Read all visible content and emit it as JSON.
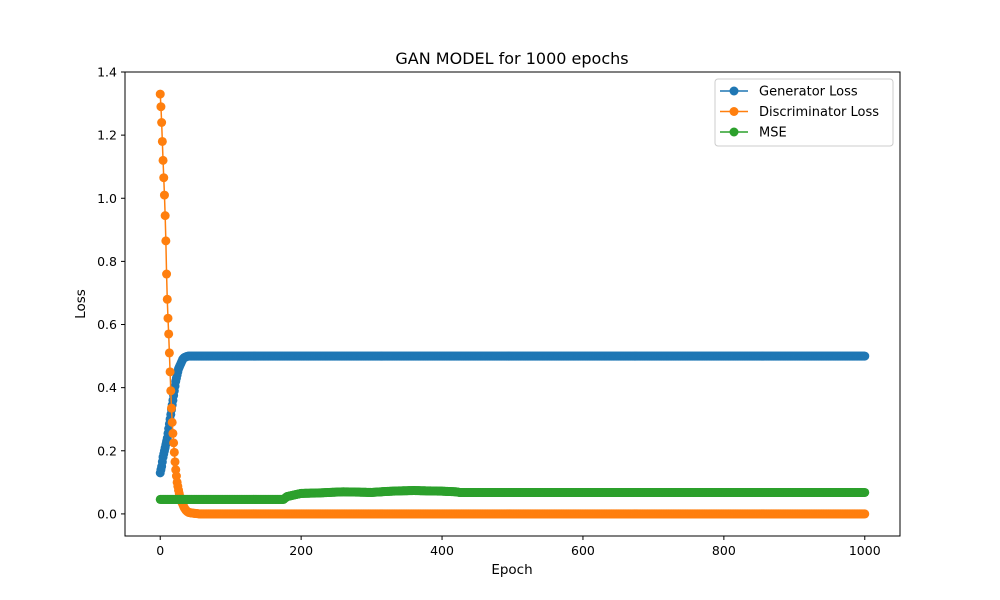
{
  "chart_data": {
    "type": "line",
    "title": "GAN MODEL  for 1000 epochs",
    "xlabel": "Epoch",
    "ylabel": "Loss",
    "xlim": [
      -50,
      1050
    ],
    "ylim": [
      -0.07,
      1.4
    ],
    "xticks": [
      0,
      200,
      400,
      600,
      800,
      1000
    ],
    "yticks": [
      0.0,
      0.2,
      0.4,
      0.6,
      0.8,
      1.0,
      1.2,
      1.4
    ],
    "xtick_labels": [
      "0",
      "200",
      "400",
      "600",
      "800",
      "1000"
    ],
    "ytick_labels": [
      "0.0",
      "0.2",
      "0.4",
      "0.6",
      "0.8",
      "1.0",
      "1.2",
      "1.4"
    ],
    "legend_position": "top-right",
    "grid": false,
    "marker": "circle",
    "series": [
      {
        "name": "Generator Loss",
        "color": "#1f77b4",
        "x": [
          0,
          2,
          4,
          6,
          8,
          10,
          12,
          14,
          16,
          18,
          20,
          22,
          24,
          26,
          28,
          30,
          32,
          34,
          36,
          38,
          40,
          44,
          48,
          52,
          56,
          60,
          70,
          80,
          100,
          150,
          200,
          300,
          400,
          500,
          600,
          700,
          800,
          900,
          1000
        ],
        "y": [
          0.13,
          0.15,
          0.18,
          0.2,
          0.22,
          0.24,
          0.27,
          0.3,
          0.33,
          0.36,
          0.39,
          0.42,
          0.44,
          0.46,
          0.47,
          0.48,
          0.49,
          0.495,
          0.497,
          0.499,
          0.5,
          0.5,
          0.5,
          0.5,
          0.5,
          0.5,
          0.5,
          0.5,
          0.5,
          0.5,
          0.5,
          0.5,
          0.5,
          0.5,
          0.5,
          0.5,
          0.5,
          0.5,
          0.5
        ]
      },
      {
        "name": "Discriminator Loss",
        "color": "#ff7f0e",
        "x": [
          0,
          1,
          2,
          3,
          4,
          5,
          6,
          7,
          8,
          9,
          10,
          11,
          12,
          13,
          14,
          15,
          16,
          17,
          18,
          19,
          20,
          21,
          22,
          23,
          24,
          26,
          28,
          30,
          32,
          34,
          36,
          38,
          40,
          44,
          48,
          52,
          56,
          60,
          70,
          80,
          100,
          150,
          200,
          300,
          400,
          500,
          600,
          700,
          800,
          900,
          1000
        ],
        "y": [
          1.33,
          1.29,
          1.24,
          1.18,
          1.12,
          1.065,
          1.01,
          0.945,
          0.865,
          0.76,
          0.68,
          0.62,
          0.57,
          0.51,
          0.45,
          0.39,
          0.335,
          0.29,
          0.255,
          0.225,
          0.195,
          0.165,
          0.14,
          0.12,
          0.1,
          0.075,
          0.055,
          0.04,
          0.03,
          0.02,
          0.013,
          0.008,
          0.005,
          0.003,
          0.002,
          0.001,
          0.0,
          0.0,
          0.0,
          0.0,
          0.0,
          0.0,
          0.0,
          0.0,
          0.0,
          0.0,
          0.0,
          0.0,
          0.0,
          0.0,
          0.0
        ]
      },
      {
        "name": "MSE",
        "color": "#2ca02c",
        "x": [
          0,
          20,
          40,
          60,
          80,
          100,
          120,
          140,
          160,
          175,
          180,
          190,
          200,
          220,
          240,
          260,
          280,
          300,
          320,
          340,
          360,
          380,
          400,
          420,
          425,
          440,
          500,
          600,
          700,
          800,
          900,
          1000
        ],
        "y": [
          0.046,
          0.046,
          0.046,
          0.046,
          0.046,
          0.046,
          0.046,
          0.046,
          0.046,
          0.046,
          0.055,
          0.06,
          0.065,
          0.066,
          0.068,
          0.07,
          0.069,
          0.068,
          0.071,
          0.073,
          0.074,
          0.073,
          0.072,
          0.07,
          0.068,
          0.068,
          0.068,
          0.068,
          0.068,
          0.068,
          0.068,
          0.068
        ]
      }
    ]
  }
}
